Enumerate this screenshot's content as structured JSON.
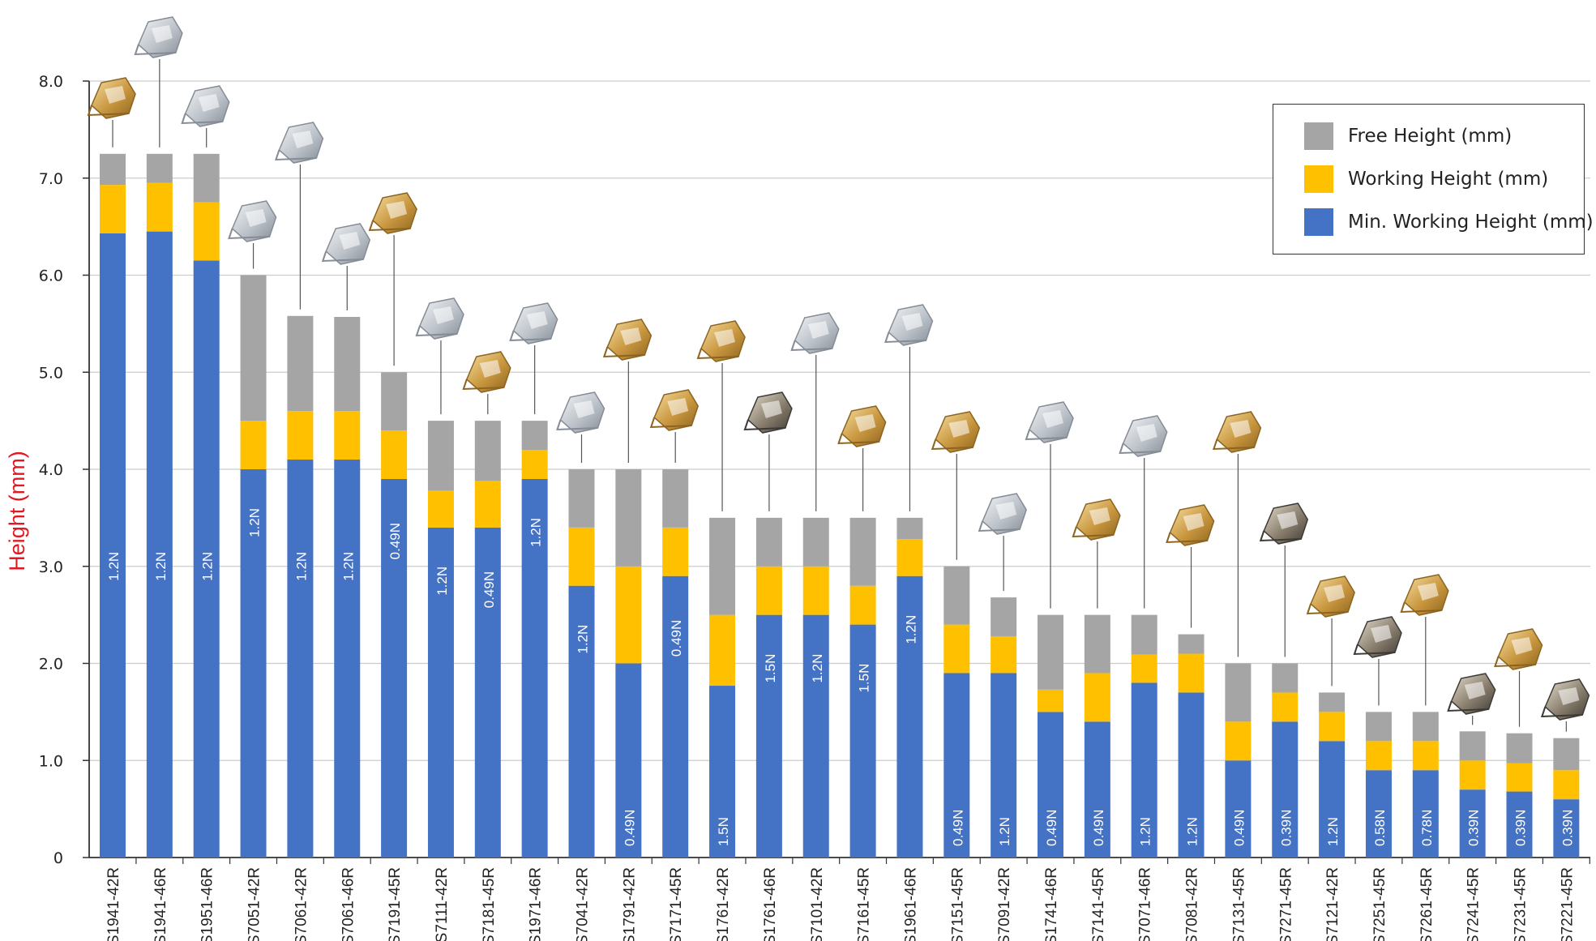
{
  "chart_data": {
    "type": "bar",
    "stacked": true,
    "ylabel": "Height (mm)",
    "ylim": [
      0,
      8
    ],
    "yticks": [
      "0",
      "1.0",
      "2.0",
      "3.0",
      "4.0",
      "5.0",
      "6.0",
      "7.0",
      "8.0"
    ],
    "grid": true,
    "legend_position": "top-right",
    "categories": [
      "S1941-42R",
      "S1941-46R",
      "S1951-46R",
      "S7051-42R",
      "S7061-42R",
      "S7061-46R",
      "S7191-45R",
      "S7111-42R",
      "S7181-45R",
      "S1971-46R",
      "S7041-42R",
      "S1791-42R",
      "S7171-45R",
      "S1761-42R",
      "S1761-46R",
      "S7101-42R",
      "S7161-45R",
      "S1961-46R",
      "S7151-45R",
      "S7091-42R",
      "S1741-46R",
      "S7141-45R",
      "S7071-46R",
      "S7081-42R",
      "S7131-45R",
      "S7271-45R",
      "S7121-42R",
      "S7251-45R",
      "S7261-45R",
      "S7241-45R",
      "S7231-45R",
      "S7221-45R"
    ],
    "series": [
      {
        "name": "Min. Working Height (mm)",
        "color": "#4472c4",
        "values": [
          6.43,
          6.45,
          6.15,
          4.0,
          4.1,
          4.1,
          3.9,
          3.4,
          3.4,
          3.9,
          2.8,
          2.0,
          2.9,
          1.77,
          2.5,
          2.5,
          2.4,
          2.9,
          1.9,
          1.9,
          1.5,
          1.4,
          1.8,
          1.7,
          1.0,
          1.4,
          1.2,
          0.9,
          0.9,
          0.7,
          0.68,
          0.6
        ]
      },
      {
        "name": "Working Height (mm)",
        "color": "#ffc000",
        "values": [
          0.5,
          0.5,
          0.6,
          0.5,
          0.5,
          0.5,
          0.5,
          0.38,
          0.48,
          0.3,
          0.6,
          1.0,
          0.5,
          0.73,
          0.5,
          0.5,
          0.4,
          0.38,
          0.5,
          0.38,
          0.23,
          0.5,
          0.29,
          0.4,
          0.4,
          0.3,
          0.3,
          0.3,
          0.3,
          0.3,
          0.29,
          0.3
        ]
      },
      {
        "name": "Free Height (mm)",
        "color": "#a5a5a5",
        "values": [
          0.32,
          0.3,
          0.5,
          1.5,
          0.98,
          0.97,
          0.6,
          0.72,
          0.62,
          0.3,
          0.6,
          1.0,
          0.6,
          1.0,
          0.5,
          0.5,
          0.7,
          0.22,
          0.6,
          0.4,
          0.77,
          0.6,
          0.41,
          0.2,
          0.6,
          0.3,
          0.2,
          0.3,
          0.3,
          0.3,
          0.31,
          0.33
        ]
      }
    ],
    "bar_labels": [
      "1.2N",
      "1.2N",
      "1.2N",
      "1.2N",
      "1.2N",
      "1.2N",
      "0.49N",
      "1.2N",
      "0.49N",
      "1.2N",
      "1.2N",
      "0.49N",
      "0.49N",
      "1.5N",
      "1.5N",
      "1.2N",
      "1.5N",
      "1.2N",
      "0.49N",
      "1.2N",
      "0.49N",
      "0.49N",
      "1.2N",
      "1.2N",
      "0.49N",
      "0.39N",
      "1.2N",
      "0.58N",
      "0.78N",
      "0.39N",
      "0.39N",
      "0.39N"
    ],
    "product_image_finishes": [
      "gold",
      "silver",
      "silver",
      "silver",
      "silver",
      "silver",
      "gold",
      "silver",
      "gold",
      "silver",
      "silver",
      "gold",
      "gold",
      "gold",
      "dark",
      "silver",
      "gold",
      "silver",
      "gold",
      "silver",
      "silver",
      "gold",
      "silver",
      "gold",
      "gold",
      "dark",
      "gold",
      "dark",
      "gold",
      "dark",
      "gold",
      "dark"
    ],
    "colors": {
      "grid": "#cccccc",
      "axis": "#333333",
      "ylabel": "#e01a22"
    }
  }
}
